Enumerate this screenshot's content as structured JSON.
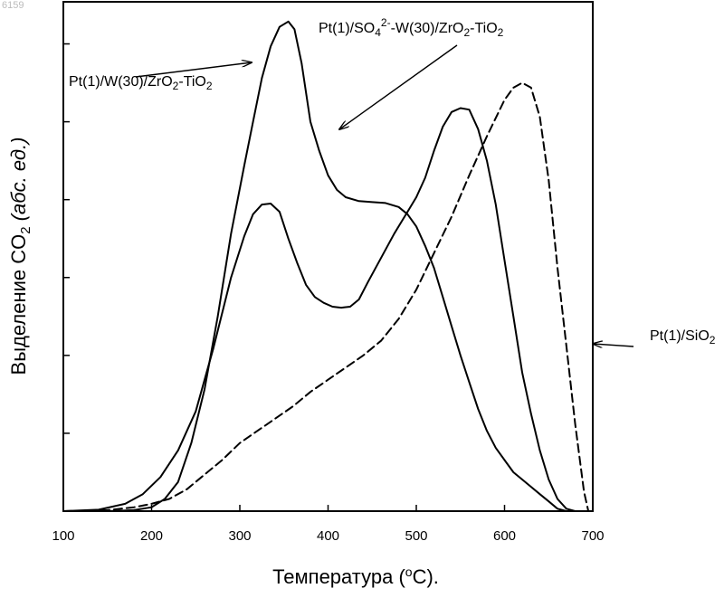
{
  "corner_id": "6159",
  "chart_data": {
    "type": "line",
    "title": "",
    "xlabel": "Температура (°С).",
    "ylabel": "Выделение CO2 (абс. ед.)",
    "xlim": [
      100,
      700
    ],
    "ylim": [
      0,
      100
    ],
    "x_ticks": [
      {
        "value": 100,
        "label": "100"
      },
      {
        "value": 200,
        "label": "200"
      },
      {
        "value": 300,
        "label": "300"
      },
      {
        "value": 400,
        "label": "400"
      },
      {
        "value": 500,
        "label": "500"
      },
      {
        "value": 600,
        "label": "600"
      },
      {
        "value": 700,
        "label": "700"
      }
    ],
    "y_ticks": [
      0,
      16,
      32,
      48,
      64,
      80,
      96
    ],
    "y_tick_labels": false,
    "grid": false,
    "legend": "none (series labelled by callout arrows)",
    "series": [
      {
        "name": "Pt(1)/W(30)/ZrO2-TiO2",
        "label_parts": [
          {
            "t": "Pt(1)/W(30)/ZrO",
            "s": "n"
          },
          {
            "t": "2",
            "s": "sub"
          },
          {
            "t": "-TiO",
            "s": "n"
          },
          {
            "t": "2",
            "s": "sub"
          }
        ],
        "dash": "solid",
        "points": [
          [
            100,
            0
          ],
          [
            140,
            0.3
          ],
          [
            170,
            1.5
          ],
          [
            190,
            3.5
          ],
          [
            210,
            7
          ],
          [
            230,
            12.5
          ],
          [
            250,
            20.5
          ],
          [
            270,
            33.5
          ],
          [
            290,
            48
          ],
          [
            305,
            56.5
          ],
          [
            315,
            61
          ],
          [
            325,
            63
          ],
          [
            335,
            63.2
          ],
          [
            345,
            61.5
          ],
          [
            355,
            56
          ],
          [
            365,
            51
          ],
          [
            375,
            46.5
          ],
          [
            385,
            44
          ],
          [
            395,
            42.8
          ],
          [
            405,
            42
          ],
          [
            415,
            41.8
          ],
          [
            425,
            42
          ],
          [
            435,
            43.5
          ],
          [
            445,
            47
          ],
          [
            460,
            52
          ],
          [
            475,
            57
          ],
          [
            490,
            61.5
          ],
          [
            500,
            64.5
          ],
          [
            510,
            68.5
          ],
          [
            520,
            74
          ],
          [
            530,
            79
          ],
          [
            540,
            82
          ],
          [
            550,
            82.8
          ],
          [
            560,
            82.5
          ],
          [
            570,
            78.5
          ],
          [
            580,
            72
          ],
          [
            590,
            63
          ],
          [
            600,
            51.5
          ],
          [
            610,
            40
          ],
          [
            620,
            28.5
          ],
          [
            630,
            20
          ],
          [
            640,
            12.5
          ],
          [
            650,
            6.5
          ],
          [
            660,
            2.5
          ],
          [
            670,
            0.5
          ],
          [
            680,
            0
          ]
        ]
      },
      {
        "name": "Pt(1)/SO4 2--W(30)/ZrO2-TiO2",
        "label_parts": [
          {
            "t": "Pt(1)/SO",
            "s": "n"
          },
          {
            "t": "4",
            "s": "sub"
          },
          {
            "t": "2-",
            "s": "sup"
          },
          {
            "t": "-W(30)/ZrO",
            "s": "n"
          },
          {
            "t": "2",
            "s": "sub"
          },
          {
            "t": "-TiO",
            "s": "n"
          },
          {
            "t": "2",
            "s": "sub"
          }
        ],
        "dash": "solid",
        "points": [
          [
            100,
            0
          ],
          [
            150,
            0
          ],
          [
            180,
            0.2
          ],
          [
            200,
            0.8
          ],
          [
            215,
            2.5
          ],
          [
            230,
            6
          ],
          [
            245,
            14
          ],
          [
            260,
            25
          ],
          [
            275,
            40
          ],
          [
            290,
            57
          ],
          [
            305,
            71
          ],
          [
            315,
            80
          ],
          [
            325,
            89
          ],
          [
            335,
            95.5
          ],
          [
            345,
            99.5
          ],
          [
            355,
            100.6
          ],
          [
            362,
            99
          ],
          [
            370,
            92
          ],
          [
            380,
            80
          ],
          [
            390,
            74
          ],
          [
            400,
            69
          ],
          [
            410,
            66
          ],
          [
            420,
            64.5
          ],
          [
            435,
            63.7
          ],
          [
            450,
            63.5
          ],
          [
            465,
            63.3
          ],
          [
            480,
            62.5
          ],
          [
            490,
            61
          ],
          [
            500,
            58.5
          ],
          [
            510,
            54.5
          ],
          [
            520,
            50
          ],
          [
            530,
            44
          ],
          [
            540,
            38
          ],
          [
            550,
            32
          ],
          [
            560,
            26.5
          ],
          [
            570,
            21
          ],
          [
            580,
            16.5
          ],
          [
            590,
            13
          ],
          [
            600,
            10.5
          ],
          [
            610,
            8
          ],
          [
            620,
            6.5
          ],
          [
            630,
            5
          ],
          [
            640,
            3.5
          ],
          [
            650,
            2
          ],
          [
            660,
            0.5
          ],
          [
            670,
            0
          ]
        ]
      },
      {
        "name": "Pt(1)/SiO2",
        "label_parts": [
          {
            "t": "Pt(1)/SiO",
            "s": "n"
          },
          {
            "t": "2",
            "s": "sub"
          }
        ],
        "dash": "dashed",
        "points": [
          [
            100,
            0
          ],
          [
            150,
            0.2
          ],
          [
            180,
            0.8
          ],
          [
            200,
            1.5
          ],
          [
            220,
            2.5
          ],
          [
            240,
            4.5
          ],
          [
            260,
            7.5
          ],
          [
            280,
            10.5
          ],
          [
            300,
            14
          ],
          [
            320,
            16.5
          ],
          [
            340,
            19
          ],
          [
            360,
            21.5
          ],
          [
            380,
            24.5
          ],
          [
            400,
            27
          ],
          [
            420,
            29.5
          ],
          [
            440,
            32
          ],
          [
            460,
            35
          ],
          [
            480,
            39.5
          ],
          [
            500,
            45.5
          ],
          [
            520,
            53
          ],
          [
            540,
            60.5
          ],
          [
            560,
            69
          ],
          [
            580,
            77
          ],
          [
            600,
            84.5
          ],
          [
            610,
            87
          ],
          [
            620,
            88
          ],
          [
            630,
            87
          ],
          [
            640,
            81
          ],
          [
            650,
            68
          ],
          [
            660,
            50
          ],
          [
            670,
            34
          ],
          [
            680,
            18
          ],
          [
            690,
            4
          ],
          [
            695,
            0
          ]
        ]
      }
    ],
    "annotations": [
      {
        "series": 0,
        "label_at": [
          76,
          95
        ],
        "arrow_from": [
          150,
          85
        ],
        "arrow_to": [
          278,
          69
        ]
      },
      {
        "series": 1,
        "label_at": [
          352,
          36
        ],
        "arrow_from": [
          505,
          50
        ],
        "arrow_to": [
          375,
          143
        ]
      },
      {
        "series": 2,
        "label_at": [
          718,
          376
        ],
        "arrow_from": [
          700,
          383
        ],
        "arrow_to": [
          655,
          380
        ]
      }
    ]
  }
}
